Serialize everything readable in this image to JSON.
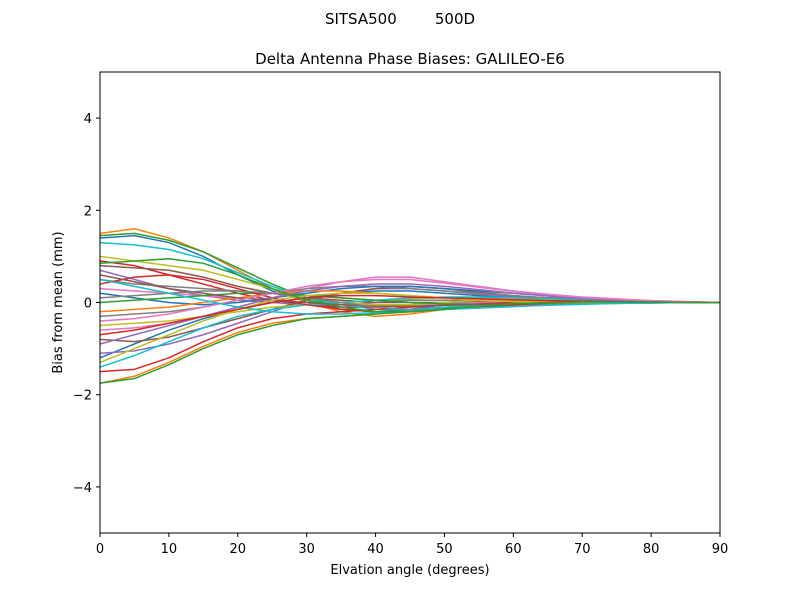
{
  "chart_data": {
    "type": "line",
    "suptitle": "SITSA500        500D",
    "title": "Delta Antenna Phase Biases: GALILEO-E6",
    "xlabel": "Elvation angle (degrees)",
    "ylabel": "Bias from mean (mm)",
    "xlim": [
      0,
      90
    ],
    "ylim": [
      -5,
      5
    ],
    "xticks": [
      0,
      10,
      20,
      30,
      40,
      50,
      60,
      70,
      80,
      90
    ],
    "yticks": [
      -4,
      -2,
      0,
      2,
      4
    ],
    "ytick_labels": [
      "−4",
      "−2",
      "0",
      "2",
      "4"
    ],
    "grid": false,
    "legend": "none",
    "x": [
      0,
      5,
      10,
      15,
      20,
      25,
      30,
      35,
      40,
      45,
      50,
      55,
      60,
      65,
      70,
      75,
      80,
      85,
      90
    ],
    "series": [
      {
        "color": "#1f77b4",
        "values": [
          1.4,
          1.45,
          1.3,
          1.0,
          0.6,
          0.25,
          0.05,
          -0.15,
          -0.2,
          -0.15,
          -0.05,
          0.05,
          0.1,
          0.1,
          0.08,
          0.05,
          0.03,
          0.01,
          0
        ]
      },
      {
        "color": "#ff7f0e",
        "values": [
          1.5,
          1.6,
          1.4,
          1.1,
          0.7,
          0.3,
          0.0,
          -0.2,
          -0.3,
          -0.25,
          -0.15,
          -0.05,
          0.0,
          0.02,
          0.02,
          0.02,
          0.01,
          0.0,
          0
        ]
      },
      {
        "color": "#2ca02c",
        "values": [
          1.45,
          1.5,
          1.35,
          1.1,
          0.75,
          0.4,
          0.1,
          -0.1,
          -0.2,
          -0.2,
          -0.12,
          -0.05,
          0.0,
          0.02,
          0.03,
          0.03,
          0.02,
          0.01,
          0
        ]
      },
      {
        "color": "#d62728",
        "values": [
          0.9,
          0.8,
          0.6,
          0.4,
          0.2,
          0.05,
          -0.05,
          -0.1,
          -0.1,
          -0.05,
          0.0,
          0.05,
          0.08,
          0.08,
          0.07,
          0.05,
          0.03,
          0.01,
          0
        ]
      },
      {
        "color": "#9467bd",
        "values": [
          0.7,
          0.5,
          0.3,
          0.15,
          0.05,
          0.0,
          -0.05,
          -0.05,
          0.0,
          0.05,
          0.05,
          0.05,
          0.04,
          0.03,
          0.02,
          0.01,
          0.0,
          0.0,
          0
        ]
      },
      {
        "color": "#8c564b",
        "values": [
          0.8,
          0.75,
          0.7,
          0.55,
          0.35,
          0.2,
          0.1,
          0.05,
          0.0,
          0.0,
          0.0,
          0.02,
          0.03,
          0.03,
          0.02,
          0.01,
          0.0,
          0.0,
          0
        ]
      },
      {
        "color": "#e377c2",
        "values": [
          0.3,
          0.25,
          0.2,
          0.15,
          0.1,
          0.05,
          0.0,
          -0.05,
          -0.05,
          -0.05,
          -0.03,
          0.0,
          0.02,
          0.03,
          0.03,
          0.02,
          0.01,
          0.0,
          0
        ]
      },
      {
        "color": "#7f7f7f",
        "values": [
          0.5,
          0.4,
          0.35,
          0.3,
          0.25,
          0.2,
          0.15,
          0.1,
          0.05,
          0.05,
          0.05,
          0.05,
          0.05,
          0.04,
          0.03,
          0.02,
          0.01,
          0.0,
          0
        ]
      },
      {
        "color": "#bcbd22",
        "values": [
          1.0,
          0.9,
          0.8,
          0.7,
          0.5,
          0.3,
          0.1,
          0.0,
          -0.05,
          -0.05,
          0.0,
          0.05,
          0.08,
          0.08,
          0.06,
          0.04,
          0.02,
          0.01,
          0
        ]
      },
      {
        "color": "#17becf",
        "values": [
          1.3,
          1.25,
          1.15,
          0.95,
          0.65,
          0.35,
          0.1,
          -0.05,
          -0.15,
          -0.15,
          -0.1,
          -0.05,
          0.0,
          0.02,
          0.03,
          0.03,
          0.02,
          0.01,
          0
        ]
      },
      {
        "color": "#1f77b4",
        "values": [
          -1.2,
          -0.9,
          -0.6,
          -0.35,
          -0.15,
          0.0,
          0.1,
          0.2,
          0.25,
          0.25,
          0.2,
          0.15,
          0.1,
          0.08,
          0.06,
          0.04,
          0.02,
          0.01,
          0
        ]
      },
      {
        "color": "#ff7f0e",
        "values": [
          -1.75,
          -1.6,
          -1.3,
          -0.95,
          -0.65,
          -0.45,
          -0.35,
          -0.3,
          -0.25,
          -0.2,
          -0.15,
          -0.1,
          -0.05,
          -0.03,
          -0.02,
          -0.01,
          0.0,
          0.0,
          0
        ]
      },
      {
        "color": "#2ca02c",
        "values": [
          -1.75,
          -1.65,
          -1.35,
          -1.0,
          -0.7,
          -0.5,
          -0.35,
          -0.3,
          -0.25,
          -0.2,
          -0.15,
          -0.1,
          -0.06,
          -0.04,
          -0.03,
          -0.02,
          -0.01,
          0.0,
          0
        ]
      },
      {
        "color": "#d62728",
        "values": [
          -1.5,
          -1.45,
          -1.2,
          -0.85,
          -0.55,
          -0.35,
          -0.25,
          -0.2,
          -0.15,
          -0.1,
          -0.06,
          -0.03,
          0.0,
          0.01,
          0.01,
          0.01,
          0.0,
          0.0,
          0
        ]
      },
      {
        "color": "#9467bd",
        "values": [
          -1.1,
          -1.05,
          -0.9,
          -0.7,
          -0.45,
          -0.2,
          0.05,
          0.2,
          0.3,
          0.3,
          0.25,
          0.18,
          0.12,
          0.08,
          0.05,
          0.03,
          0.02,
          0.01,
          0
        ]
      },
      {
        "color": "#8c564b",
        "values": [
          -0.8,
          -0.85,
          -0.75,
          -0.55,
          -0.35,
          -0.15,
          0.05,
          0.2,
          0.3,
          0.35,
          0.3,
          0.22,
          0.15,
          0.1,
          0.07,
          0.05,
          0.03,
          0.01,
          0
        ]
      },
      {
        "color": "#e377c2",
        "values": [
          -0.6,
          -0.55,
          -0.45,
          -0.3,
          -0.1,
          0.1,
          0.3,
          0.45,
          0.55,
          0.55,
          0.45,
          0.35,
          0.25,
          0.18,
          0.12,
          0.08,
          0.04,
          0.02,
          0
        ]
      },
      {
        "color": "#7f7f7f",
        "values": [
          -0.3,
          -0.25,
          -0.2,
          -0.1,
          0.05,
          0.2,
          0.3,
          0.35,
          0.35,
          0.3,
          0.25,
          0.2,
          0.15,
          0.1,
          0.07,
          0.04,
          0.02,
          0.01,
          0
        ]
      },
      {
        "color": "#bcbd22",
        "values": [
          -0.5,
          -0.45,
          -0.4,
          -0.3,
          -0.2,
          -0.1,
          -0.05,
          0.0,
          0.05,
          0.08,
          0.1,
          0.1,
          0.08,
          0.06,
          0.05,
          0.03,
          0.02,
          0.01,
          0
        ]
      },
      {
        "color": "#17becf",
        "values": [
          -1.4,
          -1.15,
          -0.85,
          -0.55,
          -0.3,
          -0.15,
          -0.05,
          0.0,
          0.05,
          0.1,
          0.12,
          0.12,
          0.1,
          0.08,
          0.05,
          0.03,
          0.02,
          0.01,
          0
        ]
      },
      {
        "color": "#1f77b4",
        "values": [
          0.2,
          0.1,
          0.0,
          -0.05,
          0.0,
          0.1,
          0.2,
          0.3,
          0.35,
          0.35,
          0.3,
          0.25,
          0.2,
          0.15,
          0.1,
          0.06,
          0.03,
          0.01,
          0
        ]
      },
      {
        "color": "#ff7f0e",
        "values": [
          -0.2,
          -0.15,
          -0.1,
          0.0,
          0.1,
          0.2,
          0.25,
          0.25,
          0.2,
          0.15,
          0.1,
          0.06,
          0.04,
          0.03,
          0.02,
          0.02,
          0.01,
          0.0,
          0
        ]
      },
      {
        "color": "#2ca02c",
        "values": [
          0.0,
          0.05,
          0.1,
          0.15,
          0.2,
          0.2,
          0.15,
          0.1,
          0.05,
          0.0,
          -0.03,
          -0.04,
          -0.04,
          -0.03,
          -0.02,
          -0.01,
          0.0,
          0.0,
          0
        ]
      },
      {
        "color": "#d62728",
        "values": [
          0.4,
          0.55,
          0.6,
          0.5,
          0.3,
          0.1,
          -0.05,
          -0.15,
          -0.2,
          -0.2,
          -0.15,
          -0.1,
          -0.05,
          -0.02,
          0.0,
          0.0,
          0.0,
          0.0,
          0
        ]
      },
      {
        "color": "#9467bd",
        "values": [
          -0.9,
          -0.7,
          -0.5,
          -0.3,
          -0.1,
          0.1,
          0.25,
          0.35,
          0.4,
          0.4,
          0.35,
          0.28,
          0.2,
          0.14,
          0.09,
          0.05,
          0.03,
          0.01,
          0
        ]
      },
      {
        "color": "#8c564b",
        "values": [
          0.6,
          0.45,
          0.3,
          0.2,
          0.1,
          0.05,
          0.0,
          -0.05,
          -0.08,
          -0.08,
          -0.06,
          -0.04,
          -0.02,
          -0.01,
          0.0,
          0.0,
          0.0,
          0.0,
          0
        ]
      },
      {
        "color": "#e377c2",
        "values": [
          -0.4,
          -0.35,
          -0.25,
          -0.1,
          0.05,
          0.2,
          0.35,
          0.45,
          0.5,
          0.5,
          0.42,
          0.33,
          0.24,
          0.17,
          0.11,
          0.07,
          0.04,
          0.02,
          0
        ]
      },
      {
        "color": "#7f7f7f",
        "values": [
          0.1,
          0.15,
          0.2,
          0.25,
          0.25,
          0.2,
          0.1,
          0.0,
          -0.1,
          -0.15,
          -0.15,
          -0.12,
          -0.08,
          -0.05,
          -0.03,
          -0.02,
          -0.01,
          0.0,
          0
        ]
      },
      {
        "color": "#bcbd22",
        "values": [
          -1.3,
          -1.0,
          -0.7,
          -0.4,
          -0.15,
          0.05,
          0.15,
          0.2,
          0.2,
          0.15,
          0.1,
          0.05,
          0.02,
          0.0,
          0.0,
          0.0,
          0.0,
          0.0,
          0
        ]
      },
      {
        "color": "#17becf",
        "values": [
          0.5,
          0.35,
          0.2,
          0.05,
          -0.1,
          -0.2,
          -0.25,
          -0.25,
          -0.22,
          -0.18,
          -0.15,
          -0.12,
          -0.09,
          -0.06,
          -0.04,
          -0.02,
          -0.01,
          0.0,
          0
        ]
      },
      {
        "color": "#d62728",
        "values": [
          -0.7,
          -0.6,
          -0.45,
          -0.3,
          -0.15,
          0.0,
          0.1,
          0.15,
          0.15,
          0.12,
          0.1,
          0.08,
          0.06,
          0.04,
          0.03,
          0.02,
          0.01,
          0.0,
          0
        ]
      },
      {
        "color": "#2ca02c",
        "values": [
          0.85,
          0.9,
          0.95,
          0.85,
          0.6,
          0.3,
          0.05,
          -0.1,
          -0.2,
          -0.2,
          -0.15,
          -0.08,
          -0.03,
          0.0,
          0.01,
          0.01,
          0.01,
          0.0,
          0
        ]
      }
    ]
  }
}
